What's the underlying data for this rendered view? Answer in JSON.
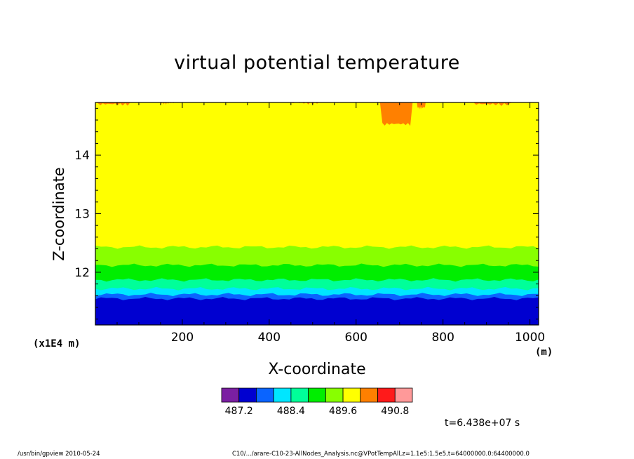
{
  "chart_data": {
    "type": "heatmap",
    "title": "virtual potential temperature",
    "xlabel": "X-coordinate",
    "ylabel": "Z-coordinate",
    "x_scale_label": "(x1E4 m)",
    "x_unit_label": "(m)",
    "xlim": [
      0,
      1020
    ],
    "ylim": [
      11.1,
      14.9
    ],
    "x_ticks": [
      200,
      400,
      600,
      800,
      1000
    ],
    "x_tick_labels": [
      "200",
      "400",
      "600",
      "800",
      "1000"
    ],
    "y_ticks": [
      12,
      13,
      14
    ],
    "y_tick_labels": [
      "12",
      "13",
      "14"
    ],
    "colorbar": {
      "levels": [
        486.8,
        487.2,
        487.6,
        488.0,
        488.4,
        488.8,
        489.2,
        489.6,
        490.0,
        490.4,
        490.8,
        491.2
      ],
      "colors": [
        "#7b1fa2",
        "#0000d0",
        "#0a64ff",
        "#00e6ff",
        "#00ff99",
        "#00ee00",
        "#88ff00",
        "#ffff00",
        "#ff8000",
        "#ff1a1a",
        "#ff9999"
      ],
      "tick_labels": [
        "487.2",
        "488.4",
        "489.6",
        "490.8"
      ],
      "tick_level_index": [
        1,
        4,
        7,
        10
      ]
    },
    "bands": [
      {
        "z_bottom": 11.1,
        "z_top": 11.55,
        "color": "#0000d0"
      },
      {
        "z_bottom": 11.55,
        "z_top": 11.62,
        "color": "#0a64ff"
      },
      {
        "z_bottom": 11.62,
        "z_top": 11.72,
        "color": "#00e6ff"
      },
      {
        "z_bottom": 11.72,
        "z_top": 11.87,
        "color": "#00ff99"
      },
      {
        "z_bottom": 11.87,
        "z_top": 12.12,
        "color": "#00ee00"
      },
      {
        "z_bottom": 12.12,
        "z_top": 12.43,
        "color": "#88ff00"
      },
      {
        "z_bottom": 12.43,
        "z_top": 14.9,
        "color": "#ffff00"
      }
    ],
    "top_patches": [
      {
        "x": [
          0,
          80
        ],
        "z_bottom": 14.84,
        "color": "#ff8000"
      },
      {
        "x": [
          150,
          185
        ],
        "z_bottom": 14.86,
        "color": "#ff8000"
      },
      {
        "x": [
          450,
          520
        ],
        "z_bottom": 14.86,
        "color": "#ff8000"
      },
      {
        "x": [
          655,
          730
        ],
        "z_bottom": 14.5,
        "color": "#ff8000"
      },
      {
        "x": [
          740,
          760
        ],
        "z_bottom": 14.78,
        "color": "#ff8000"
      },
      {
        "x": [
          870,
          960
        ],
        "z_bottom": 14.84,
        "color": "#ff8000"
      }
    ]
  },
  "annotation": {
    "time": "t=6.438e+07 s"
  },
  "footer": {
    "left": "/usr/bin/gpview  2010-05-24",
    "right": "C10/.../arare-C10-23-AllNodes_Analysis.nc@VPotTempAll,z=1.1e5:1.5e5,t=64000000.0:64400000.0"
  }
}
